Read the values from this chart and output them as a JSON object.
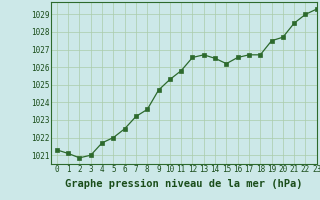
{
  "x": [
    0,
    1,
    2,
    3,
    4,
    5,
    6,
    7,
    8,
    9,
    10,
    11,
    12,
    13,
    14,
    15,
    16,
    17,
    18,
    19,
    20,
    21,
    22,
    23
  ],
  "y": [
    1021.3,
    1021.1,
    1020.85,
    1021.0,
    1021.7,
    1022.0,
    1022.5,
    1023.2,
    1023.6,
    1024.7,
    1025.3,
    1025.8,
    1026.55,
    1026.7,
    1026.5,
    1026.2,
    1026.55,
    1026.7,
    1026.7,
    1027.5,
    1027.7,
    1028.5,
    1029.0,
    1029.3
  ],
  "line_color": "#2d6a2d",
  "marker_color": "#2d6a2d",
  "bg_color": "#cce8e8",
  "grid_color": "#aaccaa",
  "title": "Graphe pression niveau de la mer (hPa)",
  "xlim": [
    -0.5,
    23
  ],
  "ylim": [
    1020.5,
    1029.7
  ],
  "yticks": [
    1021,
    1022,
    1023,
    1024,
    1025,
    1026,
    1027,
    1028,
    1029
  ],
  "xticks": [
    0,
    1,
    2,
    3,
    4,
    5,
    6,
    7,
    8,
    9,
    10,
    11,
    12,
    13,
    14,
    15,
    16,
    17,
    18,
    19,
    20,
    21,
    22,
    23
  ],
  "title_fontsize": 7.5,
  "tick_fontsize": 5.5,
  "title_color": "#1a4d1a",
  "tick_color": "#1a4d1a",
  "spine_color": "#2d6a2d"
}
